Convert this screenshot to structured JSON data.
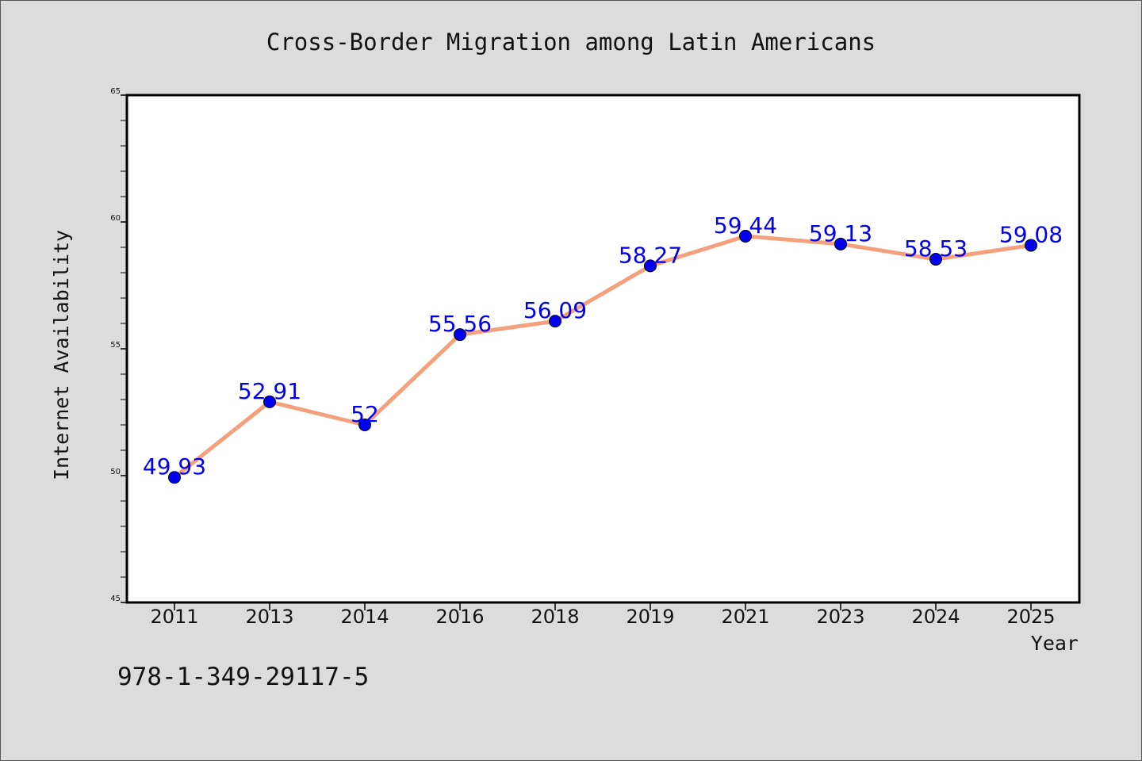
{
  "chart_data": {
    "type": "line",
    "title": "Cross-Border Migration among Latin Americans",
    "xlabel": "Year",
    "ylabel": "Internet Availability",
    "categories": [
      "2011",
      "2013",
      "2014",
      "2016",
      "2018",
      "2019",
      "2021",
      "2023",
      "2024",
      "2025"
    ],
    "values": [
      49.93,
      52.91,
      52,
      55.56,
      56.09,
      58.27,
      59.44,
      59.13,
      58.53,
      59.08
    ],
    "data_labels": [
      "49.93",
      "52.91",
      "52",
      "55.56",
      "56.09",
      "58.27",
      "59.44",
      "59.13",
      "58.53",
      "59.08"
    ],
    "ylim": [
      45,
      65
    ],
    "yticks": [
      45,
      50,
      55,
      60,
      65
    ],
    "ytick_labels": [
      "45",
      "50",
      "55",
      "60",
      "65"
    ],
    "grid": false,
    "line_color": "#f4a07c",
    "marker_color": "#0000ee",
    "label_color": "#0000ee"
  },
  "footer_text": "978-1-349-29117-5"
}
